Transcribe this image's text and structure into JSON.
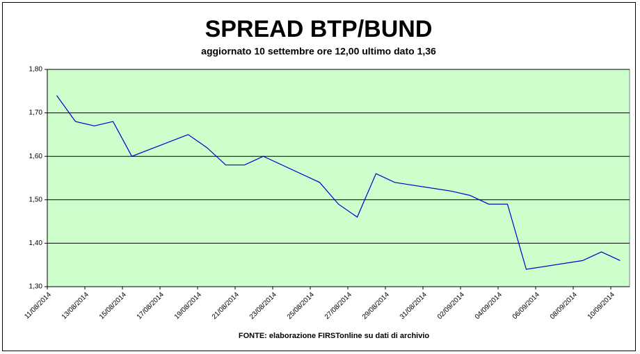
{
  "chart_data": {
    "type": "line",
    "title": "SPREAD BTP/BUND",
    "subtitle": "aggiornato 10 settembre ore 12,00 ultimo dato 1,36",
    "source": "FONTE: elaborazione FIRSTonline su dati di archivio",
    "x": [
      "11/08/2014",
      "12/08/2014",
      "13/08/2014",
      "14/08/2014",
      "15/08/2014",
      "18/08/2014",
      "19/08/2014",
      "20/08/2014",
      "21/08/2014",
      "22/08/2014",
      "25/08/2014",
      "26/08/2014",
      "27/08/2014",
      "28/08/2014",
      "29/08/2014",
      "01/09/2014",
      "02/09/2014",
      "03/09/2014",
      "04/09/2014",
      "05/09/2014",
      "08/09/2014",
      "09/09/2014",
      "10/09/2014"
    ],
    "series": [
      {
        "name": "Spread",
        "color": "#0000cc",
        "values": [
          1.74,
          1.68,
          1.67,
          1.68,
          1.6,
          1.65,
          1.62,
          1.58,
          1.58,
          1.6,
          1.54,
          1.49,
          1.46,
          1.56,
          1.54,
          1.52,
          1.51,
          1.49,
          1.49,
          1.34,
          1.36,
          1.38,
          1.36
        ]
      }
    ],
    "xlim": [
      "11/08/2014",
      "11/09/2014"
    ],
    "xticks": [
      "11/08/2014",
      "13/08/2014",
      "15/08/2014",
      "17/08/2014",
      "19/08/2014",
      "21/08/2014",
      "23/08/2014",
      "25/08/2014",
      "27/08/2014",
      "29/08/2014",
      "31/08/2014",
      "02/09/2014",
      "04/09/2014",
      "06/09/2014",
      "08/09/2014",
      "10/09/2014"
    ],
    "ylim": [
      1.3,
      1.8
    ],
    "yticks": [
      {
        "value": 1.3,
        "label": "1,30"
      },
      {
        "value": 1.4,
        "label": "1,40"
      },
      {
        "value": 1.5,
        "label": "1,50"
      },
      {
        "value": 1.6,
        "label": "1,60"
      },
      {
        "value": 1.7,
        "label": "1,70"
      },
      {
        "value": 1.8,
        "label": "1,80"
      }
    ],
    "grid": true,
    "plot_background": "#ccffcc"
  }
}
